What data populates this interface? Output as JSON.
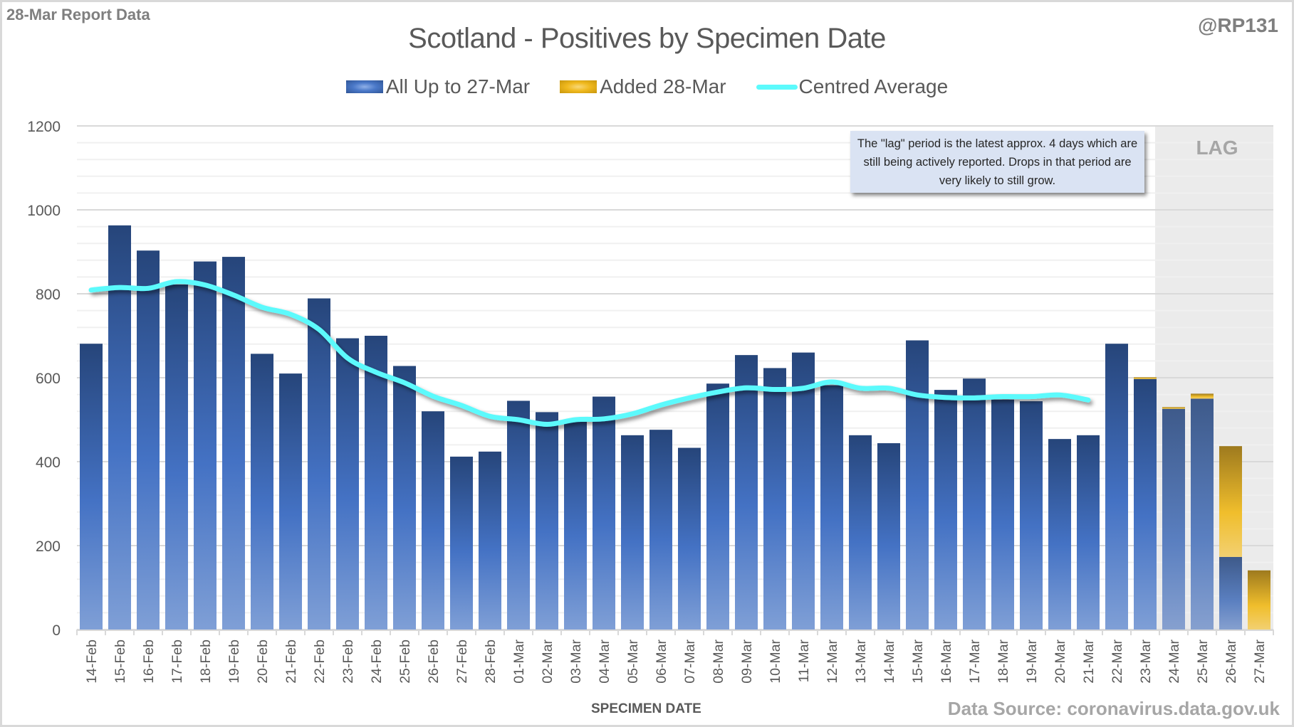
{
  "header": {
    "report_label": "28-Mar Report Data",
    "handle": "@RP131",
    "source": "Data Source: coronavirus.data.gov.uk"
  },
  "annotation": {
    "note": "The \"lag\" period is the latest approx. 4 days which are still being actively reported.  Drops in that period are very likely to still grow.",
    "lag_label": "LAG"
  },
  "colors": {
    "bar_dark": "#26457a",
    "bar_light": "#7f9fd6",
    "bar_mid": "#4472c4",
    "added_dark": "#9e7a1e",
    "added_mid": "#f0be2c",
    "added_light": "#f2d071",
    "average": "#5cfafc",
    "lag_band": "#ebebeb",
    "note_bg": "#dae3f3"
  },
  "chart_data": {
    "type": "bar",
    "stacked": true,
    "title": "Scotland - Positives by Specimen Date",
    "xlabel": "SPECIMEN DATE",
    "ylabel": "",
    "ylim": [
      0,
      1200
    ],
    "yticks": [
      0,
      200,
      400,
      600,
      800,
      1000,
      1200
    ],
    "grid": true,
    "legend_position": "top",
    "lag_start_category": "24-Mar",
    "categories": [
      "14-Feb",
      "15-Feb",
      "16-Feb",
      "17-Feb",
      "18-Feb",
      "19-Feb",
      "20-Feb",
      "21-Feb",
      "22-Feb",
      "23-Feb",
      "24-Feb",
      "25-Feb",
      "26-Feb",
      "27-Feb",
      "28-Feb",
      "01-Mar",
      "02-Mar",
      "03-Mar",
      "04-Mar",
      "05-Mar",
      "06-Mar",
      "07-Mar",
      "08-Mar",
      "09-Mar",
      "10-Mar",
      "11-Mar",
      "12-Mar",
      "13-Mar",
      "14-Mar",
      "15-Mar",
      "16-Mar",
      "17-Mar",
      "18-Mar",
      "19-Mar",
      "20-Mar",
      "21-Mar",
      "22-Mar",
      "23-Mar",
      "24-Mar",
      "25-Mar",
      "26-Mar",
      "27-Mar"
    ],
    "series": [
      {
        "name": "All Up to 27-Mar",
        "type": "bar",
        "values": [
          681,
          963,
          903,
          822,
          877,
          888,
          657,
          610,
          789,
          694,
          700,
          628,
          520,
          412,
          424,
          545,
          518,
          495,
          555,
          463,
          476,
          433,
          586,
          654,
          623,
          660,
          582,
          463,
          444,
          689,
          571,
          598,
          548,
          544,
          454,
          463,
          681,
          598,
          528,
          550,
          173,
          0
        ]
      },
      {
        "name": "Added 28-Mar",
        "type": "bar",
        "values": [
          0,
          0,
          0,
          0,
          0,
          0,
          0,
          0,
          0,
          0,
          0,
          0,
          0,
          0,
          0,
          0,
          0,
          0,
          0,
          0,
          0,
          0,
          0,
          0,
          0,
          0,
          0,
          0,
          0,
          0,
          0,
          0,
          0,
          0,
          0,
          0,
          0,
          3,
          2,
          12,
          264,
          141
        ]
      },
      {
        "name": "Centred Average",
        "type": "line",
        "values": [
          809,
          815,
          813,
          829,
          821,
          797,
          768,
          751,
          715,
          647,
          613,
          588,
          556,
          534,
          508,
          500,
          489,
          500,
          502,
          514,
          535,
          552,
          566,
          576,
          572,
          575,
          590,
          575,
          575,
          559,
          553,
          552,
          555,
          555,
          559,
          547,
          null,
          null,
          null,
          null,
          null,
          null
        ]
      }
    ]
  }
}
